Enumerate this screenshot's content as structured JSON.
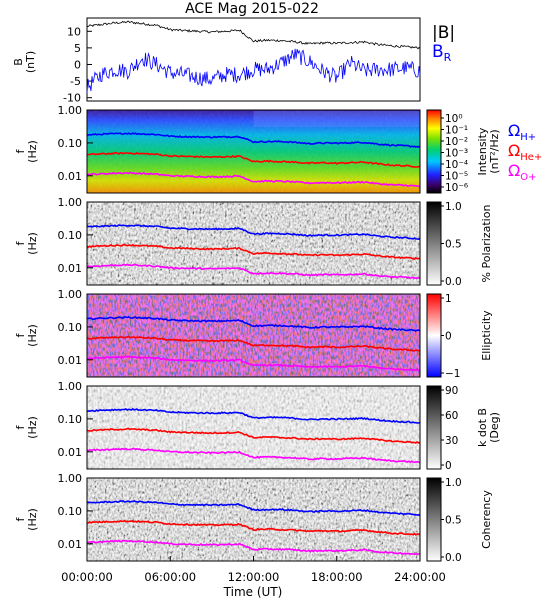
{
  "title": "ACE Mag 2015-022",
  "time_axis": {
    "label": "Time (UT)",
    "ticks": [
      "00:00:00",
      "06:00:00",
      "12:00:00",
      "18:00:00",
      "24:00:00"
    ],
    "range_hours": [
      0,
      24
    ]
  },
  "gyro_legend": {
    "h": {
      "symbol": "Ω",
      "sub": "H+",
      "color": "#0000ff"
    },
    "he": {
      "symbol": "Ω",
      "sub": "He+",
      "color": "#ff0000"
    },
    "o": {
      "symbol": "Ω",
      "sub": "O+",
      "color": "#ff00ff"
    }
  },
  "b_legend": {
    "absb": {
      "text": "|B|",
      "color": "#000000"
    },
    "br": {
      "text": "B",
      "sub": "R",
      "color": "#0000ff"
    }
  },
  "freq_ticks": [
    "1.00",
    "0.10",
    "0.01"
  ],
  "freq_ylabel": {
    "line1": "f",
    "line2": "(Hz)"
  },
  "panels": [
    {
      "id": "intensity",
      "cbar_label_line1": "Intensity",
      "cbar_label_line2": "(nT²/Hz)",
      "cbar_ticks": [
        "10⁰",
        "10⁻¹",
        "10⁻²",
        "10⁻³",
        "10⁻⁴",
        "10⁻⁵",
        "10⁻⁶"
      ]
    },
    {
      "id": "polarization",
      "cbar_label_line1": "% Polarization",
      "cbar_label_line2": "",
      "cbar_ticks": [
        "1.0",
        "0.5",
        "0.0"
      ]
    },
    {
      "id": "ellipticity",
      "cbar_label_line1": "Ellipticity",
      "cbar_label_line2": "",
      "cbar_ticks": [
        "1",
        "0",
        "−1"
      ]
    },
    {
      "id": "kdotb",
      "cbar_label_line1": "k dot B",
      "cbar_label_line2": "(Deg)",
      "cbar_ticks": [
        "90",
        "60",
        "30",
        "0"
      ]
    },
    {
      "id": "coherency",
      "cbar_label_line1": "Coherency",
      "cbar_label_line2": "",
      "cbar_ticks": [
        "1.0",
        "0.5",
        "0.0"
      ]
    }
  ],
  "chart_data": [
    {
      "type": "line",
      "title": "ACE Mag 2015-022",
      "ylabel": "B (nT)",
      "ylim": [
        -11,
        14
      ],
      "yticks": [
        "10",
        "5",
        "0",
        "-5",
        "-10"
      ],
      "x_hours": [
        0,
        1,
        2,
        3,
        4,
        5,
        6,
        7,
        8,
        9,
        10,
        11,
        12,
        13,
        14,
        15,
        16,
        17,
        18,
        19,
        20,
        21,
        22,
        23,
        24
      ],
      "series": [
        {
          "name": "|B|",
          "color": "#000000",
          "values": [
            11.5,
            12.0,
            12.5,
            12.8,
            12.3,
            11.8,
            10.5,
            10.2,
            10.0,
            9.8,
            10.0,
            10.3,
            7.0,
            7.3,
            7.2,
            6.8,
            6.2,
            6.5,
            6.4,
            6.6,
            6.8,
            6.0,
            5.6,
            5.3,
            5.0
          ]
        },
        {
          "name": "B_R",
          "color": "#0000ff",
          "values": [
            -7.0,
            -3.0,
            -1.5,
            -2.0,
            2.0,
            0.0,
            -2.5,
            -3.0,
            -4.0,
            -4.5,
            -3.0,
            -3.0,
            -1.5,
            -1.5,
            0.5,
            3.0,
            1.0,
            -2.0,
            -4.0,
            0.5,
            -2.0,
            -1.5,
            -1.5,
            -1.0,
            -2.0
          ]
        }
      ]
    },
    {
      "type": "line",
      "ylabel": "f (Hz)",
      "yscale": "log",
      "ylim": [
        0.003,
        1.0
      ],
      "x_hours": [
        0,
        1,
        2,
        3,
        4,
        5,
        6,
        7,
        8,
        9,
        10,
        11,
        12,
        13,
        14,
        15,
        16,
        17,
        18,
        19,
        20,
        21,
        22,
        23,
        24
      ],
      "series": [
        {
          "name": "Ω H+",
          "color": "#0000ff",
          "values": [
            0.175,
            0.183,
            0.19,
            0.195,
            0.188,
            0.18,
            0.16,
            0.155,
            0.152,
            0.15,
            0.152,
            0.157,
            0.107,
            0.11,
            0.11,
            0.104,
            0.095,
            0.099,
            0.098,
            0.101,
            0.104,
            0.092,
            0.085,
            0.081,
            0.076
          ]
        },
        {
          "name": "Ω He+",
          "color": "#ff0000",
          "values": [
            0.044,
            0.046,
            0.048,
            0.049,
            0.047,
            0.045,
            0.04,
            0.039,
            0.038,
            0.037,
            0.038,
            0.039,
            0.027,
            0.028,
            0.027,
            0.026,
            0.024,
            0.025,
            0.024,
            0.025,
            0.026,
            0.023,
            0.021,
            0.02,
            0.019
          ]
        },
        {
          "name": "Ω O+",
          "color": "#ff00ff",
          "values": [
            0.011,
            0.0114,
            0.012,
            0.0122,
            0.0117,
            0.0112,
            0.01,
            0.0097,
            0.0095,
            0.0093,
            0.0095,
            0.0098,
            0.0067,
            0.0069,
            0.0068,
            0.0065,
            0.006,
            0.0062,
            0.0061,
            0.0063,
            0.0065,
            0.0057,
            0.0053,
            0.0051,
            0.0048
          ]
        }
      ]
    }
  ]
}
